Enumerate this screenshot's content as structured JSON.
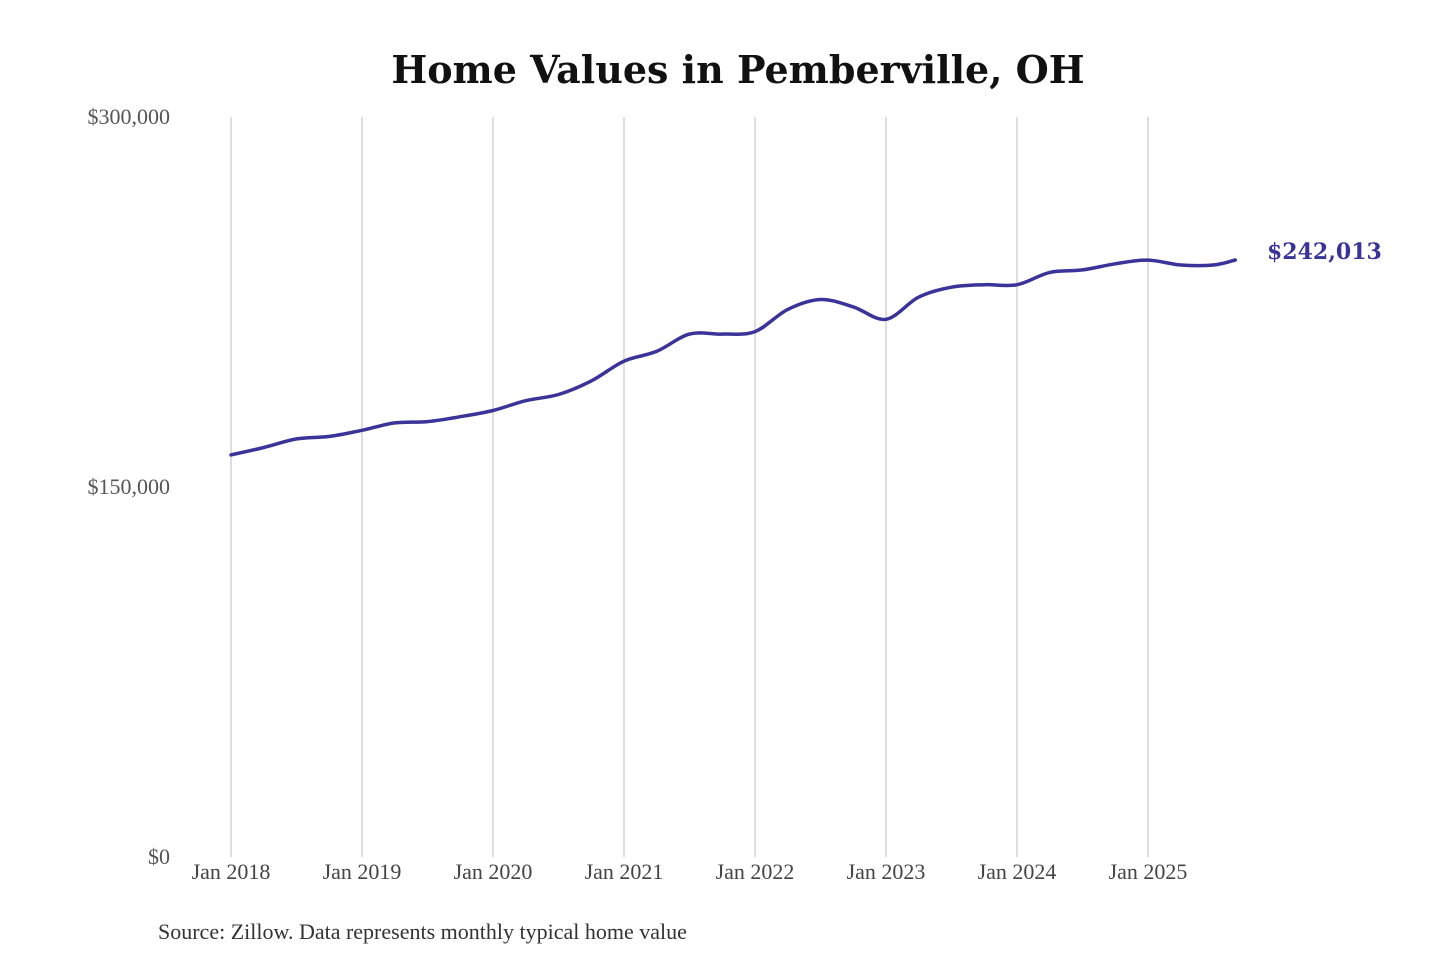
{
  "chart_data": {
    "type": "line",
    "title": "Home Values in Pemberville, OH",
    "source": "Source: Zillow. Data represents monthly typical home value",
    "x_ticks": [
      "Jan 2018",
      "Jan 2019",
      "Jan 2020",
      "Jan 2021",
      "Jan 2022",
      "Jan 2023",
      "Jan 2024",
      "Jan 2025"
    ],
    "y_ticks": [
      "$0",
      "$150,000",
      "$300,000"
    ],
    "ylim": [
      0,
      300000
    ],
    "xlim": [
      "2018-01",
      "2025-09"
    ],
    "grid": "vertical",
    "line_color": "#3a3399",
    "end_label": "$242,013",
    "series": [
      {
        "x": [
          "2018-01",
          "2018-04",
          "2018-07",
          "2018-10",
          "2019-01",
          "2019-04",
          "2019-07",
          "2019-10",
          "2020-01",
          "2020-04",
          "2020-07",
          "2020-10",
          "2021-01",
          "2021-04",
          "2021-07",
          "2021-10",
          "2022-01",
          "2022-04",
          "2022-07",
          "2022-10",
          "2023-01",
          "2023-04",
          "2023-07",
          "2023-10",
          "2024-01",
          "2024-04",
          "2024-07",
          "2024-10",
          "2025-01",
          "2025-04",
          "2025-07",
          "2025-09"
        ],
        "values": [
          163000,
          166000,
          169500,
          170500,
          173000,
          176000,
          176500,
          178500,
          181000,
          185000,
          187500,
          193000,
          201000,
          205000,
          212000,
          212000,
          213000,
          222000,
          226000,
          223000,
          218000,
          227000,
          231000,
          232000,
          232000,
          237000,
          238000,
          240500,
          242000,
          240000,
          240000,
          242013
        ]
      }
    ]
  }
}
